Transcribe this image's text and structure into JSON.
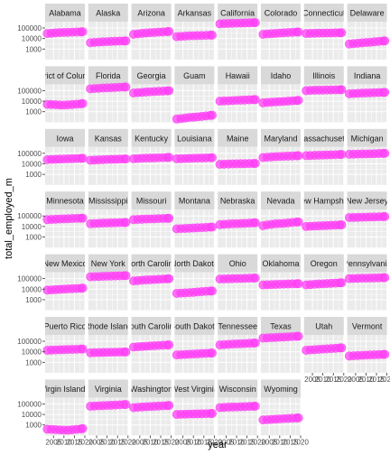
{
  "chart_data": {
    "type": "scatter",
    "facet": "state",
    "xlabel": "year",
    "ylabel": "total_employed_m",
    "y_scale": "log10",
    "ylim": [
      100,
      400000
    ],
    "xlim": [
      2001,
      2020
    ],
    "x_ticks": [
      2005,
      2010,
      2015,
      2020
    ],
    "x_tick_labels": [
      "2005",
      "2010",
      "2015",
      "2020"
    ],
    "y_ticks": [
      1000,
      10000,
      100000
    ],
    "y_tick_labels": [
      "1000",
      "10000",
      "100000"
    ],
    "point_color": "#ff3df5",
    "panel_background": "#ebebeb",
    "strip_background": "#d9d9d9",
    "gridline_color": "#ffffff",
    "years": [
      2002,
      2004,
      2006,
      2008,
      2010,
      2012,
      2014,
      2016,
      2018,
      2019
    ],
    "series": [
      {
        "name": "Alabama",
        "values": [
          30000,
          32000,
          35000,
          37000,
          38000,
          39000,
          40000,
          42000,
          43000,
          44000
        ]
      },
      {
        "name": "Alaska",
        "values": [
          4000,
          4300,
          4600,
          4900,
          5100,
          5300,
          5500,
          5700,
          5900,
          6000
        ]
      },
      {
        "name": "Arizona",
        "values": [
          25000,
          28000,
          31000,
          34000,
          36000,
          38000,
          40000,
          42000,
          45000,
          47000
        ]
      },
      {
        "name": "Arkansas",
        "values": [
          15000,
          16000,
          17000,
          18000,
          18500,
          19000,
          19500,
          20000,
          21000,
          21000
        ]
      },
      {
        "name": "California",
        "values": [
          250000,
          260000,
          270000,
          280000,
          285000,
          290000,
          300000,
          310000,
          320000,
          325000
        ]
      },
      {
        "name": "Colorado",
        "values": [
          25000,
          27000,
          29000,
          31000,
          33000,
          35000,
          37000,
          39000,
          41000,
          42000
        ]
      },
      {
        "name": "Connecticut",
        "values": [
          30000,
          31000,
          32000,
          33000,
          33000,
          34000,
          34000,
          35000,
          35000,
          36000
        ]
      },
      {
        "name": "Delaware",
        "values": [
          3000,
          3300,
          3600,
          3900,
          4200,
          4500,
          4900,
          5300,
          5700,
          6000
        ]
      },
      {
        "name": "District of Columbia",
        "values": [
          5000,
          4800,
          4600,
          4400,
          4300,
          4500,
          4800,
          5200,
          5600,
          6000
        ]
      },
      {
        "name": "Florida",
        "values": [
          150000,
          160000,
          170000,
          180000,
          185000,
          190000,
          200000,
          210000,
          220000,
          225000
        ]
      },
      {
        "name": "Georgia",
        "values": [
          60000,
          65000,
          70000,
          75000,
          78000,
          82000,
          86000,
          90000,
          95000,
          98000
        ]
      },
      {
        "name": "Guam",
        "values": [
          200,
          220,
          250,
          280,
          300,
          330,
          360,
          400,
          440,
          470
        ]
      },
      {
        "name": "Hawaii",
        "values": [
          10000,
          10500,
          11000,
          11500,
          12000,
          12500,
          13000,
          13500,
          14000,
          14200
        ]
      },
      {
        "name": "Idaho",
        "values": [
          7000,
          7500,
          8000,
          8500,
          9000,
          9500,
          10000,
          10800,
          11500,
          12000
        ]
      },
      {
        "name": "Illinois",
        "values": [
          100000,
          105000,
          110000,
          112000,
          113000,
          115000,
          117000,
          120000,
          122000,
          124000
        ]
      },
      {
        "name": "Indiana",
        "values": [
          50000,
          53000,
          56000,
          58000,
          60000,
          62000,
          64000,
          66000,
          68000,
          70000
        ]
      },
      {
        "name": "Iowa",
        "values": [
          25000,
          26000,
          27000,
          28000,
          29000,
          30000,
          31000,
          32000,
          33000,
          34000
        ]
      },
      {
        "name": "Kansas",
        "values": [
          22000,
          23000,
          24000,
          25000,
          26000,
          26500,
          27000,
          28000,
          29000,
          29500
        ]
      },
      {
        "name": "Kentucky",
        "values": [
          30000,
          32000,
          34000,
          35000,
          36000,
          37000,
          38000,
          39000,
          40000,
          41000
        ]
      },
      {
        "name": "Louisiana",
        "values": [
          30000,
          31000,
          32000,
          33000,
          34000,
          35000,
          36000,
          37000,
          38000,
          38500
        ]
      },
      {
        "name": "Maine",
        "values": [
          9000,
          9300,
          9600,
          9900,
          10100,
          10300,
          10500,
          10700,
          10900,
          11000
        ]
      },
      {
        "name": "Maryland",
        "values": [
          40000,
          43000,
          46000,
          48000,
          50000,
          52000,
          54000,
          56000,
          58000,
          60000
        ]
      },
      {
        "name": "Massachusetts",
        "values": [
          60000,
          62000,
          64000,
          66000,
          68000,
          70000,
          72000,
          74000,
          76000,
          78000
        ]
      },
      {
        "name": "Michigan",
        "values": [
          80000,
          82000,
          84000,
          86000,
          88000,
          90000,
          92000,
          95000,
          98000,
          100000
        ]
      },
      {
        "name": "Minnesota",
        "values": [
          45000,
          47000,
          49000,
          51000,
          53000,
          55000,
          57000,
          59000,
          61000,
          62000
        ]
      },
      {
        "name": "Mississippi",
        "values": [
          18000,
          19000,
          20000,
          21000,
          21500,
          22000,
          22500,
          23000,
          23500,
          24000
        ]
      },
      {
        "name": "Missouri",
        "values": [
          45000,
          47000,
          49000,
          51000,
          52000,
          54000,
          56000,
          58000,
          60000,
          61000
        ]
      },
      {
        "name": "Montana",
        "values": [
          6000,
          6300,
          6600,
          6900,
          7200,
          7500,
          7800,
          8200,
          8600,
          8800
        ]
      },
      {
        "name": "Nebraska",
        "values": [
          15000,
          16000,
          17000,
          18000,
          18500,
          19000,
          20000,
          21000,
          22000,
          22500
        ]
      },
      {
        "name": "Nevada",
        "values": [
          12000,
          14000,
          16000,
          18000,
          19000,
          20000,
          22000,
          24000,
          26000,
          27000
        ]
      },
      {
        "name": "New Hampshire",
        "values": [
          10000,
          10500,
          11000,
          11500,
          12000,
          12500,
          13000,
          13500,
          14000,
          14500
        ]
      },
      {
        "name": "New Jersey",
        "values": [
          70000,
          72000,
          74000,
          76000,
          78000,
          80000,
          82000,
          84000,
          86000,
          88000
        ]
      },
      {
        "name": "New Mexico",
        "values": [
          8000,
          8500,
          9000,
          9500,
          10000,
          10500,
          11000,
          11500,
          12000,
          12500
        ]
      },
      {
        "name": "New York",
        "values": [
          150000,
          155000,
          160000,
          165000,
          170000,
          175000,
          180000,
          185000,
          190000,
          195000
        ]
      },
      {
        "name": "North Carolina",
        "values": [
          60000,
          65000,
          70000,
          75000,
          78000,
          82000,
          86000,
          90000,
          95000,
          98000
        ]
      },
      {
        "name": "North Dakota",
        "values": [
          4000,
          4200,
          4400,
          4700,
          5000,
          5400,
          5800,
          6200,
          6500,
          6700
        ]
      },
      {
        "name": "Ohio",
        "values": [
          90000,
          93000,
          96000,
          99000,
          101000,
          103000,
          106000,
          109000,
          112000,
          114000
        ]
      },
      {
        "name": "Oklahoma",
        "values": [
          25000,
          26000,
          27000,
          28000,
          29000,
          30000,
          31000,
          32000,
          33000,
          33500
        ]
      },
      {
        "name": "Oregon",
        "values": [
          25000,
          27000,
          29000,
          31000,
          32000,
          34000,
          36000,
          38000,
          40000,
          41000
        ]
      },
      {
        "name": "Pennsylvania",
        "values": [
          100000,
          103000,
          106000,
          109000,
          111000,
          113000,
          116000,
          119000,
          122000,
          124000
        ]
      },
      {
        "name": "Puerto Rico",
        "values": [
          14000,
          14500,
          15000,
          15500,
          16000,
          16500,
          17000,
          17500,
          18000,
          18200
        ]
      },
      {
        "name": "Rhode Island",
        "values": [
          8000,
          8200,
          8400,
          8600,
          8800,
          9000,
          9200,
          9400,
          9600,
          9700
        ]
      },
      {
        "name": "South Carolina",
        "values": [
          28000,
          30000,
          32000,
          34000,
          36000,
          38000,
          40000,
          42000,
          44000,
          45000
        ]
      },
      {
        "name": "South Dakota",
        "values": [
          5000,
          5300,
          5600,
          5900,
          6200,
          6500,
          6800,
          7100,
          7400,
          7600
        ]
      },
      {
        "name": "Tennessee",
        "values": [
          45000,
          48000,
          51000,
          54000,
          56000,
          58000,
          61000,
          64000,
          67000,
          69000
        ]
      },
      {
        "name": "Texas",
        "values": [
          200000,
          210000,
          220000,
          230000,
          240000,
          250000,
          260000,
          275000,
          290000,
          300000
        ]
      },
      {
        "name": "Utah",
        "values": [
          14000,
          15000,
          16000,
          17000,
          18000,
          19000,
          20000,
          21500,
          23000,
          24000
        ]
      },
      {
        "name": "Vermont",
        "values": [
          4000,
          4200,
          4400,
          4600,
          4800,
          5000,
          5200,
          5400,
          5600,
          5700
        ]
      },
      {
        "name": "Virgin Islands",
        "values": [
          400,
          380,
          360,
          340,
          330,
          320,
          350,
          380,
          420,
          450
        ]
      },
      {
        "name": "Virginia",
        "values": [
          60000,
          63000,
          66000,
          69000,
          72000,
          75000,
          78000,
          82000,
          86000,
          88000
        ]
      },
      {
        "name": "Washington",
        "values": [
          45000,
          48000,
          51000,
          54000,
          57000,
          60000,
          63000,
          66000,
          70000,
          72000
        ]
      },
      {
        "name": "West Virginia",
        "values": [
          10000,
          10300,
          10600,
          10900,
          11200,
          11500,
          11800,
          12100,
          12400,
          12500
        ]
      },
      {
        "name": "Wisconsin",
        "values": [
          45000,
          47000,
          49000,
          51000,
          52000,
          54000,
          56000,
          58000,
          60000,
          61000
        ]
      },
      {
        "name": "Wyoming",
        "values": [
          3000,
          3200,
          3400,
          3600,
          3800,
          4000,
          4200,
          4400,
          4600,
          4700
        ]
      }
    ]
  },
  "strip_labels": [
    "Alabama",
    "Alaska",
    "Arizona",
    "Arkansas",
    "California",
    "Colorado",
    "Connecticut",
    "Delaware",
    "District of Columbia",
    "Florida",
    "Georgia",
    "Guam",
    "Hawaii",
    "Idaho",
    "Illinois",
    "Indiana",
    "Iowa",
    "Kansas",
    "Kentucky",
    "Louisiana",
    "Maine",
    "Maryland",
    "Massachusetts",
    "Michigan",
    "Minnesota",
    "Mississippi",
    "Missouri",
    "Montana",
    "Nebraska",
    "Nevada",
    "New Hampshire",
    "New Jersey",
    "New Mexico",
    "New York",
    "North Carolina",
    "North Dakota",
    "Ohio",
    "Oklahoma",
    "Oregon",
    "Pennsylvania",
    "Puerto Rico",
    "Rhode Island",
    "South Carolina",
    "South Dakota",
    "Tennessee",
    "Texas",
    "Utah",
    "Vermont",
    "Virgin Islands",
    "Virginia",
    "Washington",
    "West Virginia",
    "Wisconsin",
    "Wyoming"
  ]
}
